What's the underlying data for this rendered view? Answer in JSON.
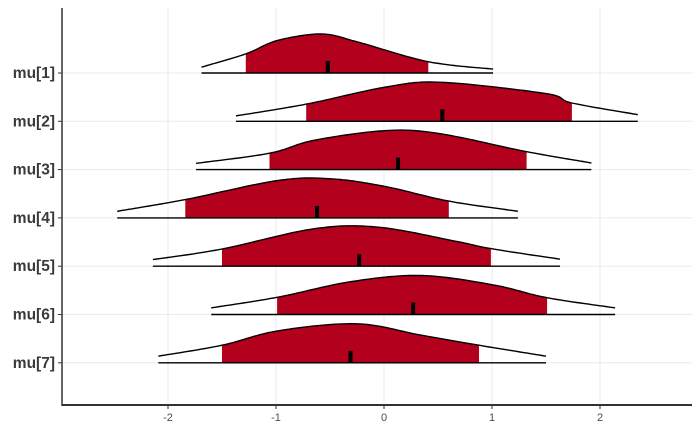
{
  "chart_data": {
    "type": "area",
    "subtype": "ridgeline-density",
    "title": "",
    "xlabel": "",
    "ylabel": "",
    "xlim": [
      -2.9,
      2.85
    ],
    "x_ticks": [
      "-2",
      "-1",
      "0",
      "1",
      "2"
    ],
    "x_tick_values": [
      -2,
      -1,
      0,
      1,
      2
    ],
    "grid": true,
    "legend": "none",
    "colors": {
      "fill": "#b2001d",
      "outline": "#000000",
      "grid": "#ebebeb",
      "axis": "#333333"
    },
    "series": [
      {
        "name": "mu[1]",
        "median": -0.52,
        "interval": [
          -1.28,
          0.41
        ],
        "range": [
          -1.69,
          1.01
        ],
        "density": [
          [
            -1.69,
            0.15
          ],
          [
            -1.28,
            0.49
          ],
          [
            -0.99,
            0.83
          ],
          [
            -0.58,
            1.0
          ],
          [
            -0.25,
            0.8
          ],
          [
            0.41,
            0.29
          ],
          [
            1.01,
            0.1
          ]
        ]
      },
      {
        "name": "mu[2]",
        "median": 0.54,
        "interval": [
          -0.72,
          1.74
        ],
        "range": [
          -1.37,
          2.35
        ],
        "density": [
          [
            -1.37,
            0.14
          ],
          [
            -0.72,
            0.44
          ],
          [
            0.02,
            0.88
          ],
          [
            0.53,
            1.0
          ],
          [
            1.5,
            0.71
          ],
          [
            1.74,
            0.47
          ],
          [
            2.35,
            0.17
          ]
        ]
      },
      {
        "name": "mu[3]",
        "median": 0.13,
        "interval": [
          -1.06,
          1.32
        ],
        "range": [
          -1.74,
          1.92
        ],
        "density": [
          [
            -1.74,
            0.16
          ],
          [
            -1.06,
            0.42
          ],
          [
            -0.65,
            0.75
          ],
          [
            0.02,
            1.0
          ],
          [
            0.52,
            0.92
          ],
          [
            1.32,
            0.46
          ],
          [
            1.92,
            0.17
          ]
        ]
      },
      {
        "name": "mu[4]",
        "median": -0.62,
        "interval": [
          -1.84,
          0.6
        ],
        "range": [
          -2.47,
          1.24
        ],
        "density": [
          [
            -2.47,
            0.17
          ],
          [
            -1.84,
            0.47
          ],
          [
            -0.98,
            0.96
          ],
          [
            -0.48,
            1.0
          ],
          [
            0.02,
            0.8
          ],
          [
            0.6,
            0.43
          ],
          [
            1.24,
            0.17
          ]
        ]
      },
      {
        "name": "mu[5]",
        "median": -0.23,
        "interval": [
          -1.5,
          0.99
        ],
        "range": [
          -2.14,
          1.63
        ],
        "density": [
          [
            -2.14,
            0.17
          ],
          [
            -1.5,
            0.44
          ],
          [
            -0.65,
            0.96
          ],
          [
            -0.05,
            1.0
          ],
          [
            0.68,
            0.63
          ],
          [
            0.99,
            0.45
          ],
          [
            1.63,
            0.18
          ]
        ]
      },
      {
        "name": "mu[6]",
        "median": 0.27,
        "interval": [
          -0.99,
          1.51
        ],
        "range": [
          -1.6,
          2.14
        ],
        "density": [
          [
            -1.6,
            0.17
          ],
          [
            -0.99,
            0.44
          ],
          [
            -0.31,
            0.84
          ],
          [
            0.34,
            1.0
          ],
          [
            1.01,
            0.76
          ],
          [
            1.51,
            0.43
          ],
          [
            2.14,
            0.17
          ]
        ]
      },
      {
        "name": "mu[7]",
        "median": -0.31,
        "interval": [
          -1.5,
          0.88
        ],
        "range": [
          -2.09,
          1.5
        ],
        "density": [
          [
            -2.09,
            0.17
          ],
          [
            -1.5,
            0.45
          ],
          [
            -0.98,
            0.82
          ],
          [
            -0.25,
            1.0
          ],
          [
            0.34,
            0.71
          ],
          [
            0.88,
            0.45
          ],
          [
            1.5,
            0.17
          ]
        ]
      }
    ]
  }
}
